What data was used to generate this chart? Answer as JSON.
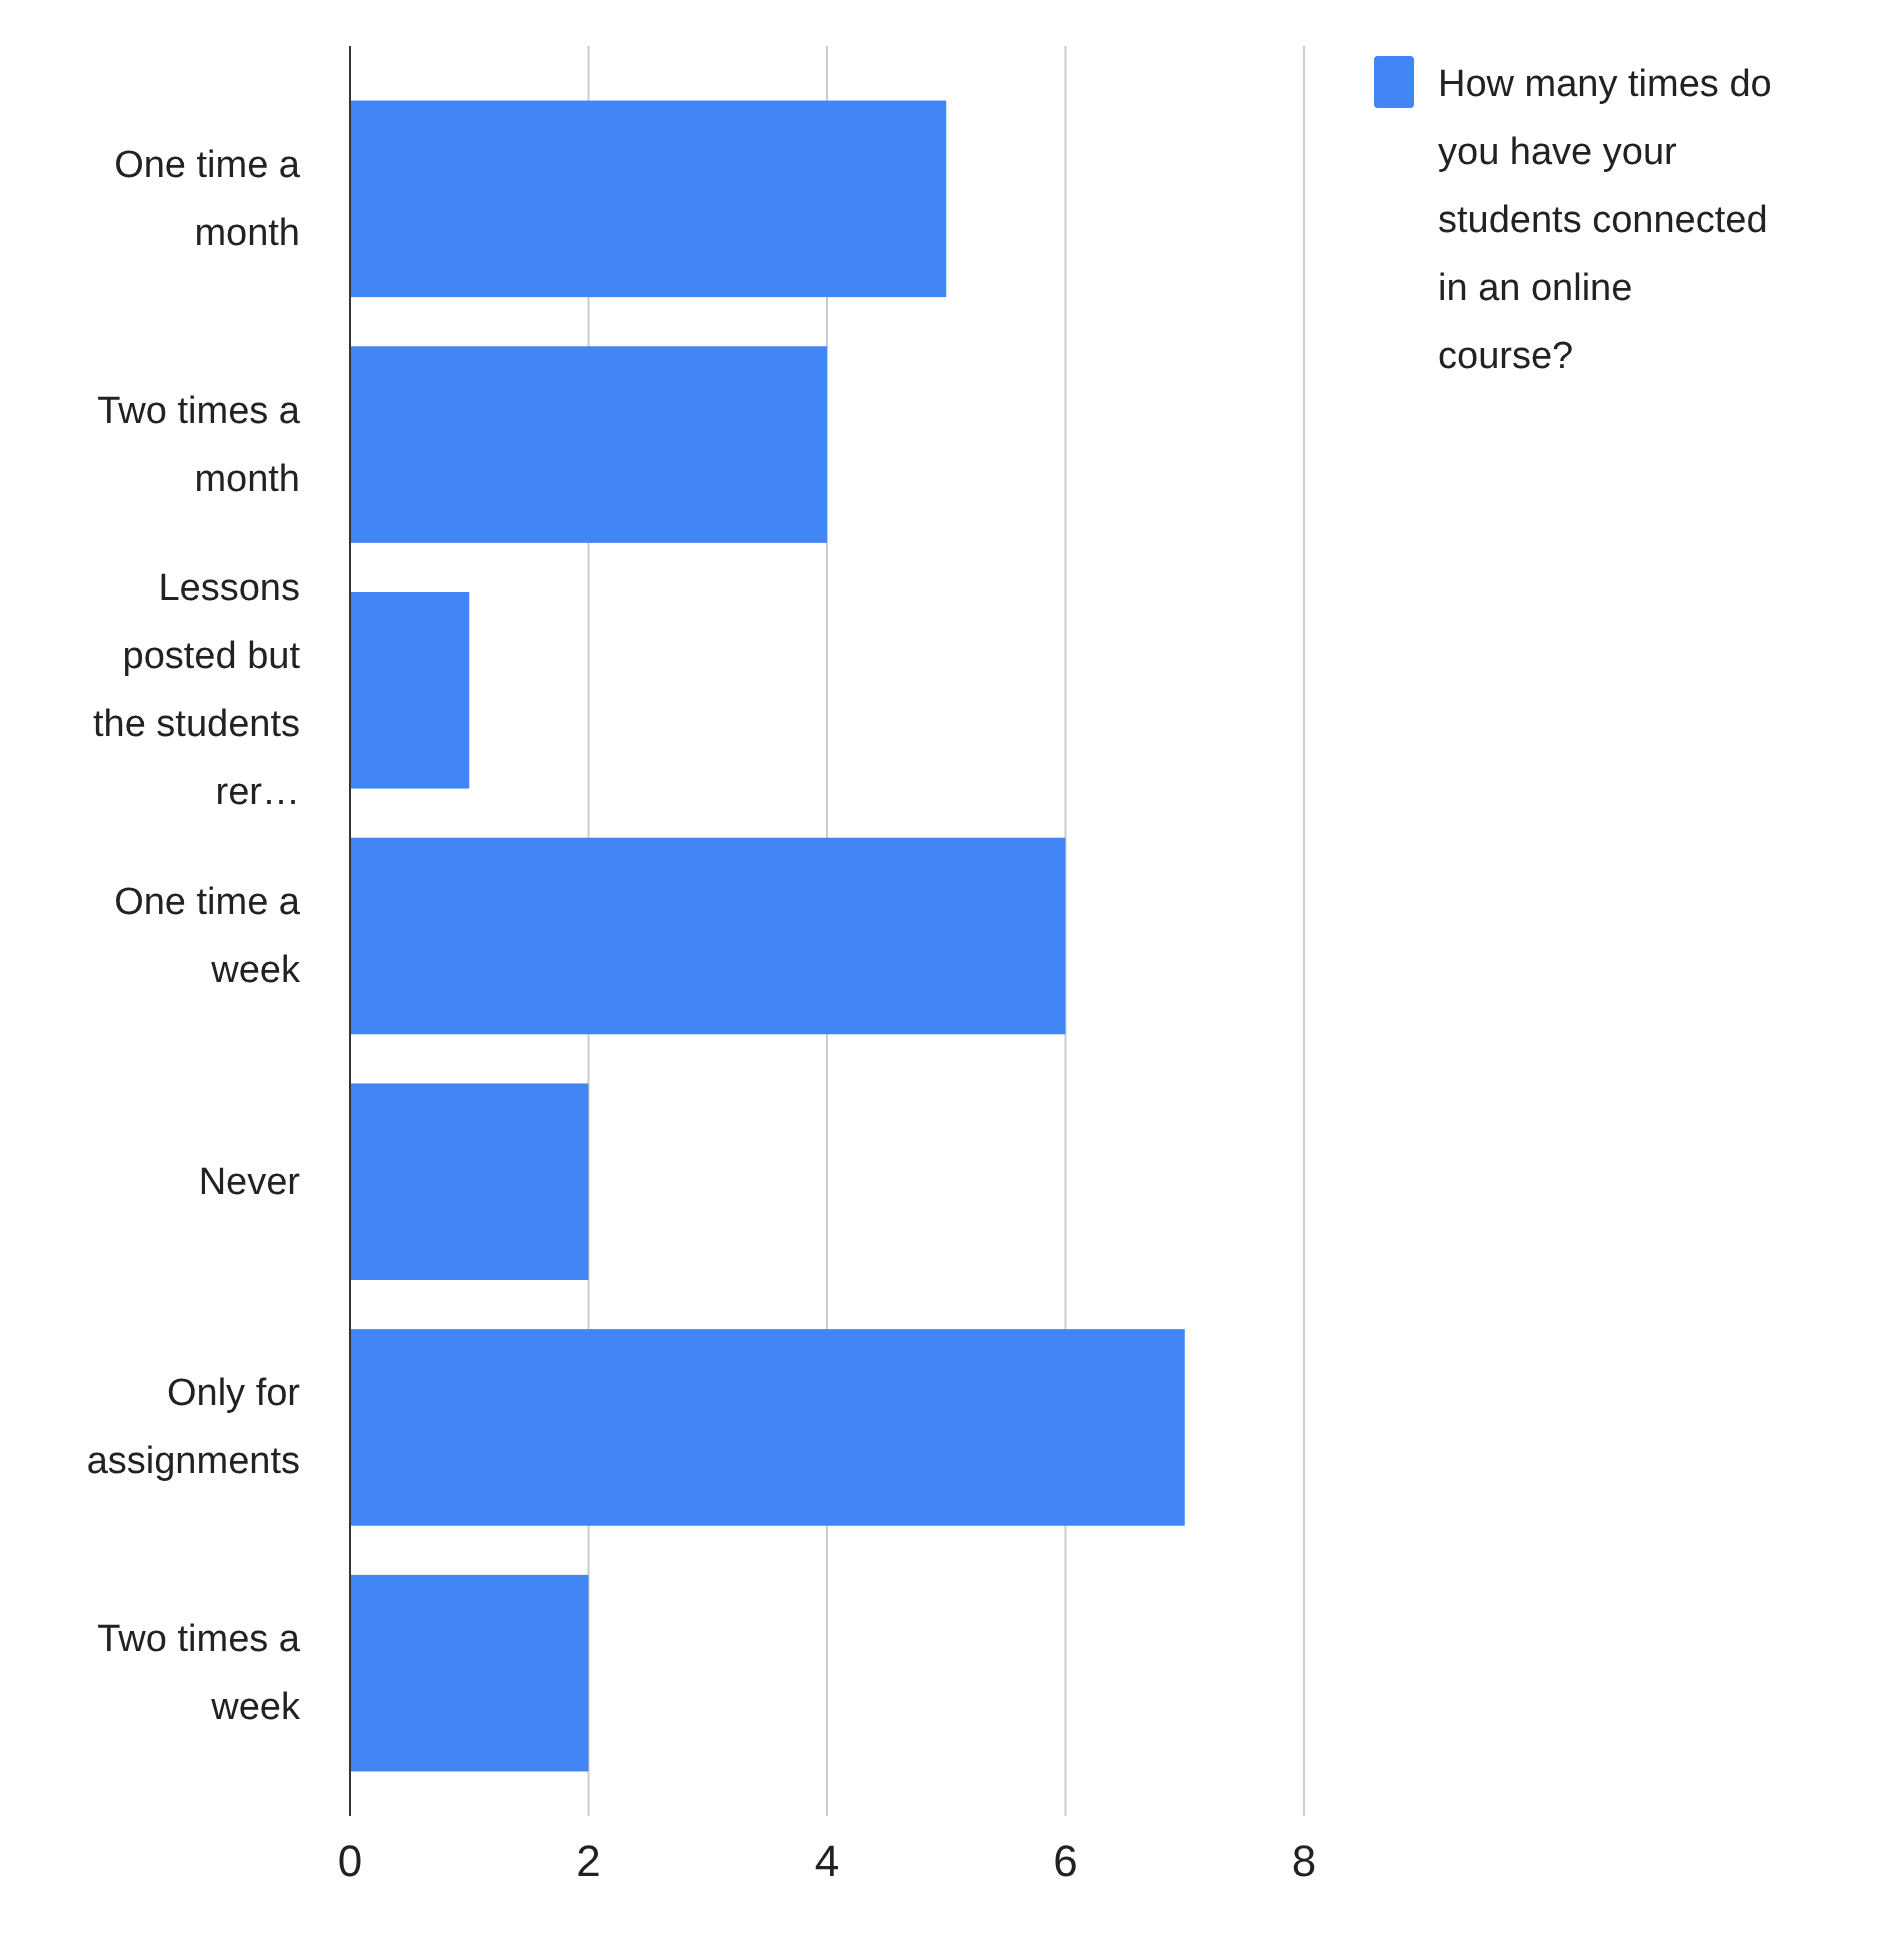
{
  "chart_data": {
    "type": "bar",
    "orientation": "horizontal",
    "categories": [
      "One time a month",
      "Two times a month",
      "Lessons posted but the students rer…",
      "One time a week",
      "Never",
      "Only for assignments",
      "Two times a week"
    ],
    "series": [
      {
        "name": "How many times do you have your students connected in an online course?",
        "color": "#4285f4",
        "values": [
          5,
          4,
          1,
          6,
          2,
          7,
          2
        ]
      }
    ],
    "xlim": [
      0,
      8
    ],
    "xticks": [
      0,
      2,
      4,
      6,
      8
    ],
    "grid": "x",
    "legend": "top right"
  }
}
